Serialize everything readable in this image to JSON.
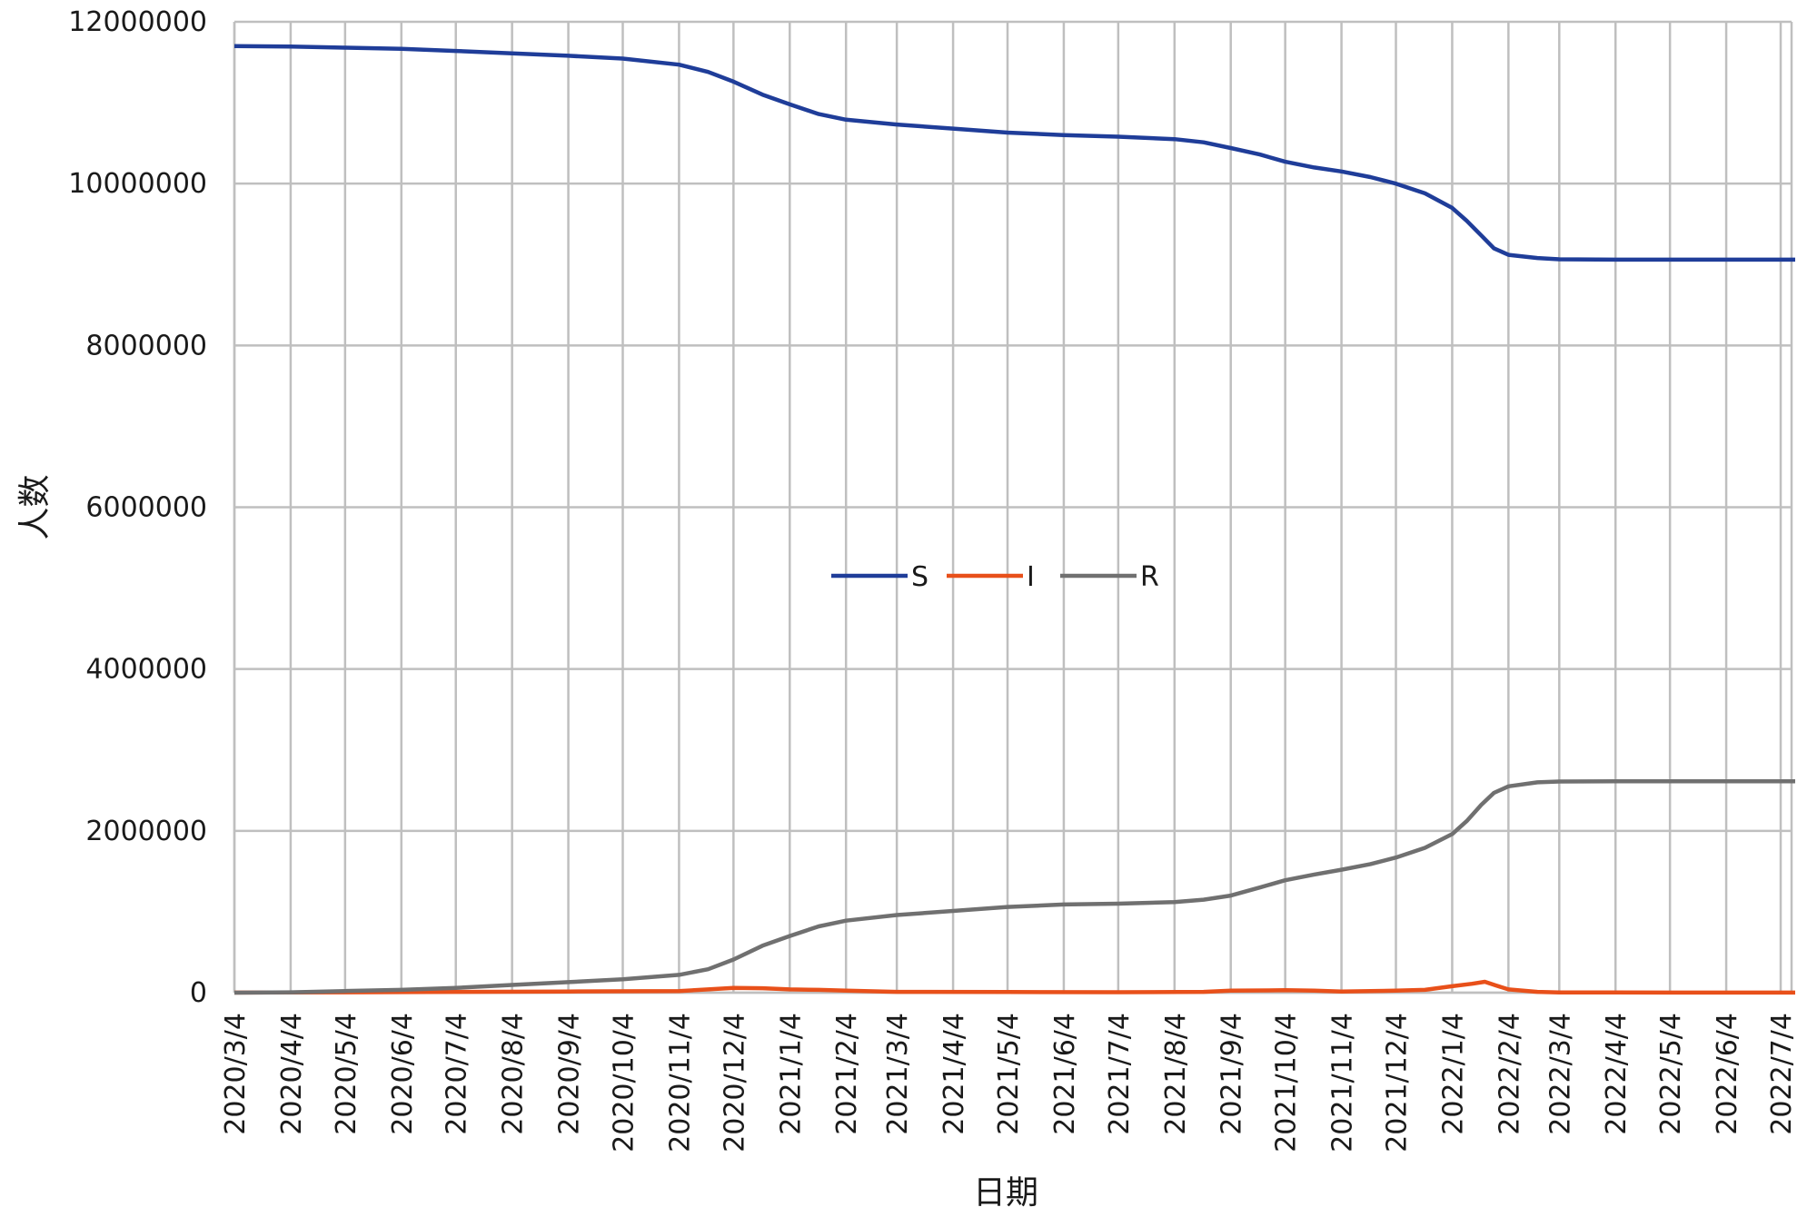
{
  "chart_data": {
    "type": "line",
    "title": "",
    "xlabel": "日期",
    "ylabel": "人数",
    "ylim": [
      0,
      12000000
    ],
    "y_ticks": [
      "0",
      "2000000",
      "4000000",
      "6000000",
      "8000000",
      "10000000",
      "12000000"
    ],
    "x_ticks": [
      "2020/3/4",
      "2020/4/4",
      "2020/5/4",
      "2020/6/4",
      "2020/7/4",
      "2020/8/4",
      "2020/9/4",
      "2020/10/4",
      "2020/11/4",
      "2020/12/4",
      "2021/1/4",
      "2021/2/4",
      "2021/3/4",
      "2021/4/4",
      "2021/5/4",
      "2021/6/4",
      "2021/7/4",
      "2021/8/4",
      "2021/9/4",
      "2021/10/4",
      "2021/11/4",
      "2021/12/4",
      "2022/1/4",
      "2022/2/4",
      "2022/3/4",
      "2022/4/4",
      "2022/5/4",
      "2022/6/4",
      "2022/7/4"
    ],
    "grid": true,
    "legend_position": "center",
    "series": [
      {
        "name": "S",
        "color": "#1f3d99",
        "points": [
          [
            "2020/3/4",
            11700000
          ],
          [
            "2020/4/4",
            11695000
          ],
          [
            "2020/5/4",
            11680000
          ],
          [
            "2020/6/4",
            11665000
          ],
          [
            "2020/7/4",
            11640000
          ],
          [
            "2020/8/4",
            11610000
          ],
          [
            "2020/9/4",
            11580000
          ],
          [
            "2020/10/4",
            11545000
          ],
          [
            "2020/11/4",
            11470000
          ],
          [
            "2020/11/20",
            11380000
          ],
          [
            "2020/12/4",
            11260000
          ],
          [
            "2020/12/20",
            11100000
          ],
          [
            "2021/1/4",
            10980000
          ],
          [
            "2021/1/20",
            10860000
          ],
          [
            "2021/2/4",
            10790000
          ],
          [
            "2021/3/4",
            10730000
          ],
          [
            "2021/4/4",
            10680000
          ],
          [
            "2021/5/4",
            10630000
          ],
          [
            "2021/6/4",
            10600000
          ],
          [
            "2021/7/4",
            10580000
          ],
          [
            "2021/8/4",
            10550000
          ],
          [
            "2021/8/20",
            10510000
          ],
          [
            "2021/9/4",
            10440000
          ],
          [
            "2021/9/20",
            10360000
          ],
          [
            "2021/10/4",
            10270000
          ],
          [
            "2021/10/20",
            10200000
          ],
          [
            "2021/11/4",
            10150000
          ],
          [
            "2021/11/20",
            10080000
          ],
          [
            "2021/12/4",
            10000000
          ],
          [
            "2021/12/20",
            9880000
          ],
          [
            "2022/1/4",
            9700000
          ],
          [
            "2022/1/12",
            9540000
          ],
          [
            "2022/1/20",
            9360000
          ],
          [
            "2022/1/27",
            9200000
          ],
          [
            "2022/2/4",
            9120000
          ],
          [
            "2022/2/20",
            9080000
          ],
          [
            "2022/3/4",
            9065000
          ],
          [
            "2022/4/4",
            9060000
          ],
          [
            "2022/5/4",
            9060000
          ],
          [
            "2022/6/4",
            9060000
          ],
          [
            "2022/7/12",
            9060000
          ]
        ]
      },
      {
        "name": "I",
        "color": "#e8501a",
        "points": [
          [
            "2020/3/4",
            1000
          ],
          [
            "2020/5/4",
            5000
          ],
          [
            "2020/7/4",
            10000
          ],
          [
            "2020/9/4",
            15000
          ],
          [
            "2020/11/4",
            20000
          ],
          [
            "2020/11/20",
            40000
          ],
          [
            "2020/12/4",
            60000
          ],
          [
            "2020/12/20",
            55000
          ],
          [
            "2021/1/4",
            40000
          ],
          [
            "2021/1/20",
            35000
          ],
          [
            "2021/2/4",
            25000
          ],
          [
            "2021/3/4",
            10000
          ],
          [
            "2021/5/4",
            8000
          ],
          [
            "2021/7/4",
            6000
          ],
          [
            "2021/8/20",
            10000
          ],
          [
            "2021/9/4",
            25000
          ],
          [
            "2021/10/4",
            30000
          ],
          [
            "2021/10/20",
            25000
          ],
          [
            "2021/11/4",
            15000
          ],
          [
            "2021/11/20",
            20000
          ],
          [
            "2021/12/4",
            25000
          ],
          [
            "2021/12/20",
            35000
          ],
          [
            "2022/1/4",
            80000
          ],
          [
            "2022/1/15",
            110000
          ],
          [
            "2022/1/22",
            135000
          ],
          [
            "2022/1/28",
            90000
          ],
          [
            "2022/2/4",
            40000
          ],
          [
            "2022/2/20",
            10000
          ],
          [
            "2022/3/4",
            3000
          ],
          [
            "2022/5/4",
            1000
          ],
          [
            "2022/7/12",
            1000
          ]
        ]
      },
      {
        "name": "R",
        "color": "#707070",
        "points": [
          [
            "2020/3/4",
            0
          ],
          [
            "2020/4/4",
            5000
          ],
          [
            "2020/5/4",
            20000
          ],
          [
            "2020/6/4",
            35000
          ],
          [
            "2020/7/4",
            60000
          ],
          [
            "2020/8/4",
            95000
          ],
          [
            "2020/9/4",
            130000
          ],
          [
            "2020/10/4",
            165000
          ],
          [
            "2020/11/4",
            220000
          ],
          [
            "2020/11/20",
            290000
          ],
          [
            "2020/12/4",
            410000
          ],
          [
            "2020/12/20",
            580000
          ],
          [
            "2021/1/4",
            700000
          ],
          [
            "2021/1/20",
            820000
          ],
          [
            "2021/2/4",
            890000
          ],
          [
            "2021/3/4",
            960000
          ],
          [
            "2021/4/4",
            1010000
          ],
          [
            "2021/5/4",
            1060000
          ],
          [
            "2021/6/4",
            1090000
          ],
          [
            "2021/7/4",
            1100000
          ],
          [
            "2021/8/4",
            1120000
          ],
          [
            "2021/8/20",
            1150000
          ],
          [
            "2021/9/4",
            1200000
          ],
          [
            "2021/9/20",
            1300000
          ],
          [
            "2021/10/4",
            1390000
          ],
          [
            "2021/10/20",
            1460000
          ],
          [
            "2021/11/4",
            1520000
          ],
          [
            "2021/11/20",
            1590000
          ],
          [
            "2021/12/4",
            1670000
          ],
          [
            "2021/12/20",
            1790000
          ],
          [
            "2022/1/4",
            1960000
          ],
          [
            "2022/1/12",
            2120000
          ],
          [
            "2022/1/20",
            2320000
          ],
          [
            "2022/1/27",
            2470000
          ],
          [
            "2022/2/4",
            2550000
          ],
          [
            "2022/2/20",
            2600000
          ],
          [
            "2022/3/4",
            2610000
          ],
          [
            "2022/4/4",
            2612000
          ],
          [
            "2022/5/4",
            2612000
          ],
          [
            "2022/6/4",
            2612000
          ],
          [
            "2022/7/12",
            2612000
          ]
        ]
      }
    ]
  }
}
